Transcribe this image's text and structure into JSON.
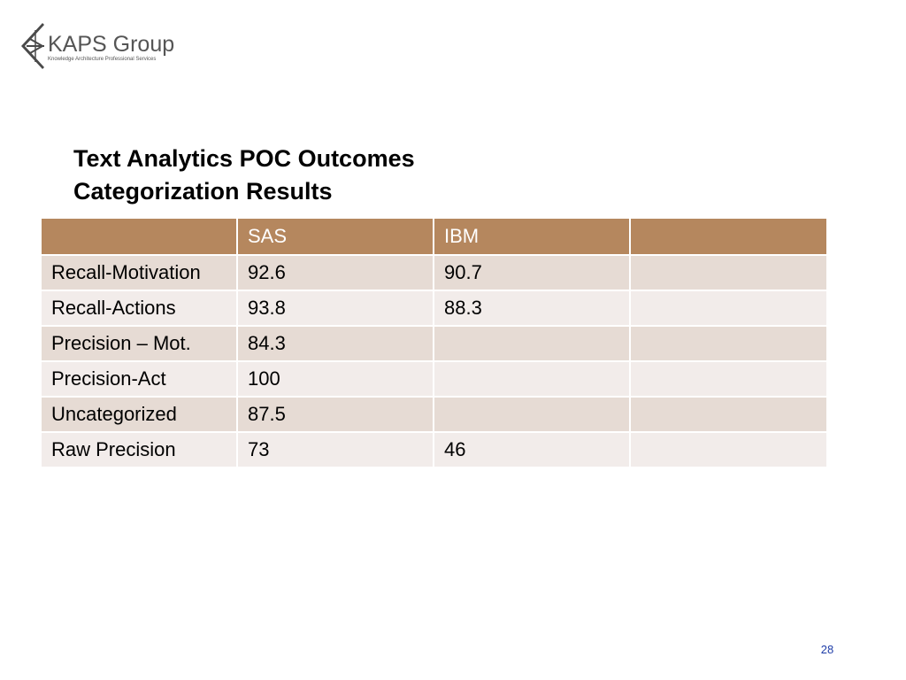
{
  "logo": {
    "name": "KAPS Group",
    "tagline": "Knowledge Architecture Professional Services"
  },
  "title": {
    "line1": "Text Analytics POC Outcomes",
    "line2": "Categorization Results"
  },
  "table": {
    "headers": [
      "",
      "SAS",
      "IBM",
      ""
    ],
    "rows": [
      [
        "Recall-Motivation",
        "92.6",
        "90.7",
        ""
      ],
      [
        "Recall-Actions",
        "93.8",
        "88.3",
        ""
      ],
      [
        "Precision – Mot.",
        "84.3",
        "",
        ""
      ],
      [
        "Precision-Act",
        "100",
        "",
        ""
      ],
      [
        "Uncategorized",
        "87.5",
        "",
        ""
      ],
      [
        "Raw Precision",
        "73",
        "46",
        ""
      ]
    ]
  },
  "page_number": "28",
  "colors": {
    "header_bg": "#b5875e",
    "row_odd_bg": "#e6dbd4",
    "row_even_bg": "#f2ecea",
    "page_number": "#1f3da8",
    "logo_text": "#555555"
  }
}
